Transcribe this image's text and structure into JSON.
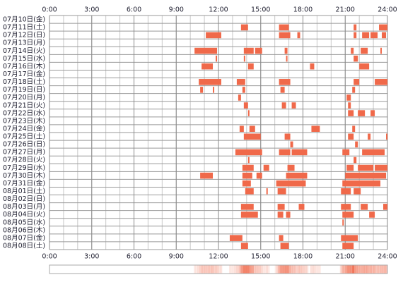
{
  "chart_data": {
    "type": "timeline",
    "categories": [
      "07月10日(金)",
      "07月11日(土)",
      "07月12日(日)",
      "07月13日(月)",
      "07月14日(火)",
      "07月15日(水)",
      "07月16日(木)",
      "07月17日(金)",
      "07月18日(土)",
      "07月19日(日)",
      "07月20日(月)",
      "07月21日(火)",
      "07月22日(水)",
      "07月23日(木)",
      "07月24日(金)",
      "07月25日(土)",
      "07月26日(日)",
      "07月27日(月)",
      "07月28日(火)",
      "07月29日(水)",
      "07月30日(木)",
      "07月31日(金)",
      "08月01日(土)",
      "08月02日(日)",
      "08月03日(月)",
      "08月04日(火)",
      "08月05日(水)",
      "08月06日(木)",
      "08月07日(金)",
      "08月08日(土)"
    ],
    "segments": [
      [],
      [
        [
          13.6,
          14.1
        ],
        [
          16.3,
          17.0
        ],
        [
          21.6,
          21.8
        ],
        [
          23.4,
          24
        ]
      ],
      [
        [
          11.1,
          12.2
        ],
        [
          16.3,
          17.1
        ],
        [
          17.6,
          17.8
        ],
        [
          21.6,
          21.8
        ],
        [
          22.2,
          22.7
        ],
        [
          22.8,
          23.3
        ],
        [
          23.6,
          23.9
        ]
      ],
      [],
      [
        [
          10.3,
          11.9
        ],
        [
          13.8,
          14.5
        ],
        [
          14.6,
          15.1
        ],
        [
          16.7,
          16.9
        ],
        [
          21.4,
          21.6
        ],
        [
          22.1,
          22.6
        ],
        [
          23.5,
          23.6
        ]
      ],
      [
        [
          11.8,
          11.9
        ],
        [
          13.8,
          13.9
        ],
        [
          16.8,
          16.9
        ],
        [
          21.6,
          21.9
        ]
      ],
      [
        [
          10.8,
          11.6
        ],
        [
          14.1,
          14.5
        ],
        [
          18.5,
          18.8
        ],
        [
          22.0,
          22.7
        ]
      ],
      [],
      [
        [
          10.6,
          12.2
        ],
        [
          13.3,
          13.9
        ],
        [
          16.3,
          17.1
        ],
        [
          21.6,
          22.0
        ],
        [
          23.1,
          24
        ]
      ],
      [
        [
          10.7,
          10.9
        ],
        [
          11.6,
          11.7
        ],
        [
          13.7,
          13.9
        ],
        [
          16.4,
          16.7
        ],
        [
          21.5,
          21.7
        ]
      ],
      [
        [
          13.4,
          13.6
        ],
        [
          21.1,
          21.4
        ]
      ],
      [
        [
          13.8,
          14.1
        ],
        [
          16.5,
          16.8
        ],
        [
          17.2,
          17.5
        ],
        [
          21.2,
          21.4
        ]
      ],
      [
        [
          14.1,
          14.2
        ],
        [
          21.2,
          21.6
        ],
        [
          21.9,
          22.4
        ],
        [
          22.8,
          23.1
        ]
      ],
      [],
      [
        [
          13.5,
          13.8
        ],
        [
          14.2,
          14.6
        ],
        [
          18.6,
          19.2
        ],
        [
          21.5,
          21.7
        ]
      ],
      [
        [
          13.8,
          15.0
        ],
        [
          16.7,
          17.1
        ],
        [
          21.2,
          21.6
        ],
        [
          22.6,
          22.8
        ],
        [
          23.9,
          24
        ]
      ],
      [
        [
          17.1,
          17.3
        ],
        [
          21.7,
          21.9
        ]
      ],
      [
        [
          13.2,
          15.1
        ],
        [
          16.3,
          17.1
        ],
        [
          17.2,
          18.3
        ],
        [
          20.8,
          21.3
        ],
        [
          22.2,
          23.8
        ]
      ],
      [
        [
          14.1,
          14.2
        ],
        [
          21.6,
          21.8
        ]
      ],
      [
        [
          13.7,
          14.5
        ],
        [
          15.2,
          15.6
        ],
        [
          16.9,
          17.4
        ],
        [
          21.1,
          21.6
        ],
        [
          21.9,
          23.0
        ],
        [
          23.1,
          24
        ]
      ],
      [
        [
          10.7,
          11.6
        ],
        [
          13.7,
          14.4
        ],
        [
          14.7,
          15.1
        ],
        [
          16.8,
          18.3
        ],
        [
          21.0,
          23.9
        ]
      ],
      [
        [
          13.7,
          14.3
        ],
        [
          16.1,
          18.2
        ],
        [
          20.8,
          23.5
        ]
      ],
      [
        [
          13.9,
          14.5
        ],
        [
          15.4,
          15.5
        ],
        [
          16.2,
          16.8
        ],
        [
          20.7,
          21.4
        ],
        [
          21.6,
          22.1
        ]
      ],
      [],
      [
        [
          13.6,
          14.5
        ],
        [
          16.2,
          16.7
        ],
        [
          17.7,
          18.1
        ],
        [
          20.7,
          21.4
        ],
        [
          22.1,
          22.6
        ],
        [
          23.7,
          24
        ]
      ],
      [
        [
          13.6,
          14.8
        ],
        [
          16.2,
          16.6
        ],
        [
          16.8,
          17.1
        ],
        [
          20.8,
          21.6
        ],
        [
          22.7,
          23.1
        ]
      ],
      [
        [
          20.8,
          20.9
        ]
      ],
      [],
      [
        [
          12.8,
          13.7
        ],
        [
          16.3,
          16.6
        ],
        [
          20.7,
          21.9
        ]
      ],
      [
        [
          13.6,
          14.1
        ],
        [
          16.4,
          17.0
        ],
        [
          20.8,
          21.6
        ]
      ]
    ],
    "color": "#f0694a",
    "xlim": [
      0,
      24
    ],
    "xticks": [
      {
        "value": 0,
        "label": "0:00"
      },
      {
        "value": 3,
        "label": "3:00"
      },
      {
        "value": 6,
        "label": "6:00"
      },
      {
        "value": 9,
        "label": "9:00"
      },
      {
        "value": 12,
        "label": "12:00"
      },
      {
        "value": 15,
        "label": "15:00"
      },
      {
        "value": 18,
        "label": "18:00"
      },
      {
        "value": 21,
        "label": "21:00"
      },
      {
        "value": 24,
        "label": "24:00"
      }
    ],
    "grid": true
  }
}
